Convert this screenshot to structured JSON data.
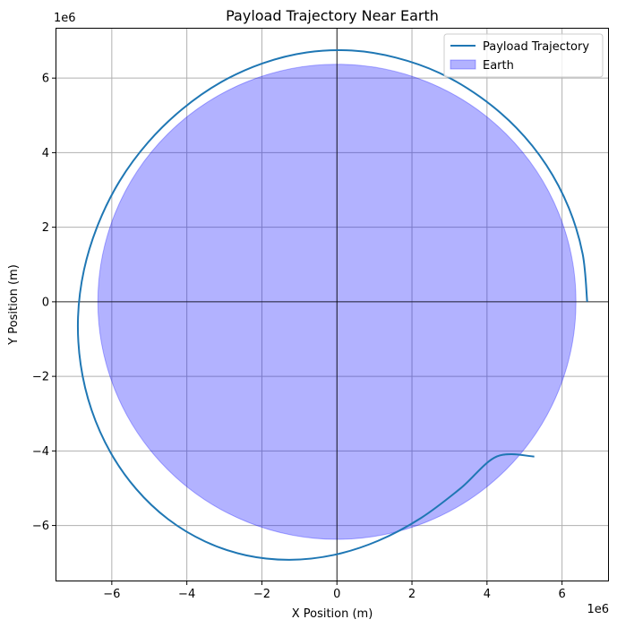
{
  "chart_data": {
    "type": "line",
    "title": "Payload Trajectory Near Earth",
    "xlabel": "X Position (m)",
    "ylabel": "Y Position (m)",
    "x_offset_label": "1e6",
    "y_offset_label": "1e6",
    "xlim": [
      -7.5,
      7.25
    ],
    "ylim": [
      -7.5,
      7.35
    ],
    "xticks": [
      -6,
      -4,
      -2,
      0,
      2,
      4,
      6
    ],
    "yticks": [
      -6,
      -4,
      -2,
      0,
      2,
      4,
      6
    ],
    "xtick_labels": [
      "−6",
      "−4",
      "−2",
      "0",
      "2",
      "4",
      "6"
    ],
    "ytick_labels": [
      "−6",
      "−4",
      "−2",
      "0",
      "2",
      "4",
      "6"
    ],
    "grid": true,
    "legend_position": "upper right",
    "series": [
      {
        "name": "Payload Trajectory",
        "color": "#1f77b4",
        "x": [
          6.67,
          6.55,
          6.18,
          5.58,
          4.78,
          3.81,
          2.73,
          1.57,
          0.4,
          -0.8,
          -1.97,
          -3.09,
          -4.12,
          -5.03,
          -5.79,
          -6.36,
          -6.74,
          -6.9,
          -6.83,
          -6.54,
          -6.04,
          -5.35,
          -4.5,
          -3.51,
          -2.42,
          -1.26,
          -0.08,
          1.1,
          2.24,
          3.3,
          4.26,
          5.26
        ],
        "y": [
          0.0,
          1.28,
          2.52,
          3.67,
          4.67,
          5.5,
          6.14,
          6.55,
          6.74,
          6.69,
          6.4,
          5.89,
          5.17,
          4.28,
          3.24,
          2.09,
          0.86,
          -0.41,
          -1.68,
          -2.9,
          -4.03,
          -5.02,
          -5.83,
          -6.43,
          -6.8,
          -6.92,
          -6.79,
          -6.41,
          -5.8,
          -5.0,
          -4.15,
          -4.15
        ]
      },
      {
        "name": "Earth",
        "type": "filled_circle",
        "color": "#0000ff",
        "fill_alpha": 0.3,
        "center": [
          0,
          0
        ],
        "radius": 6.371
      }
    ]
  }
}
